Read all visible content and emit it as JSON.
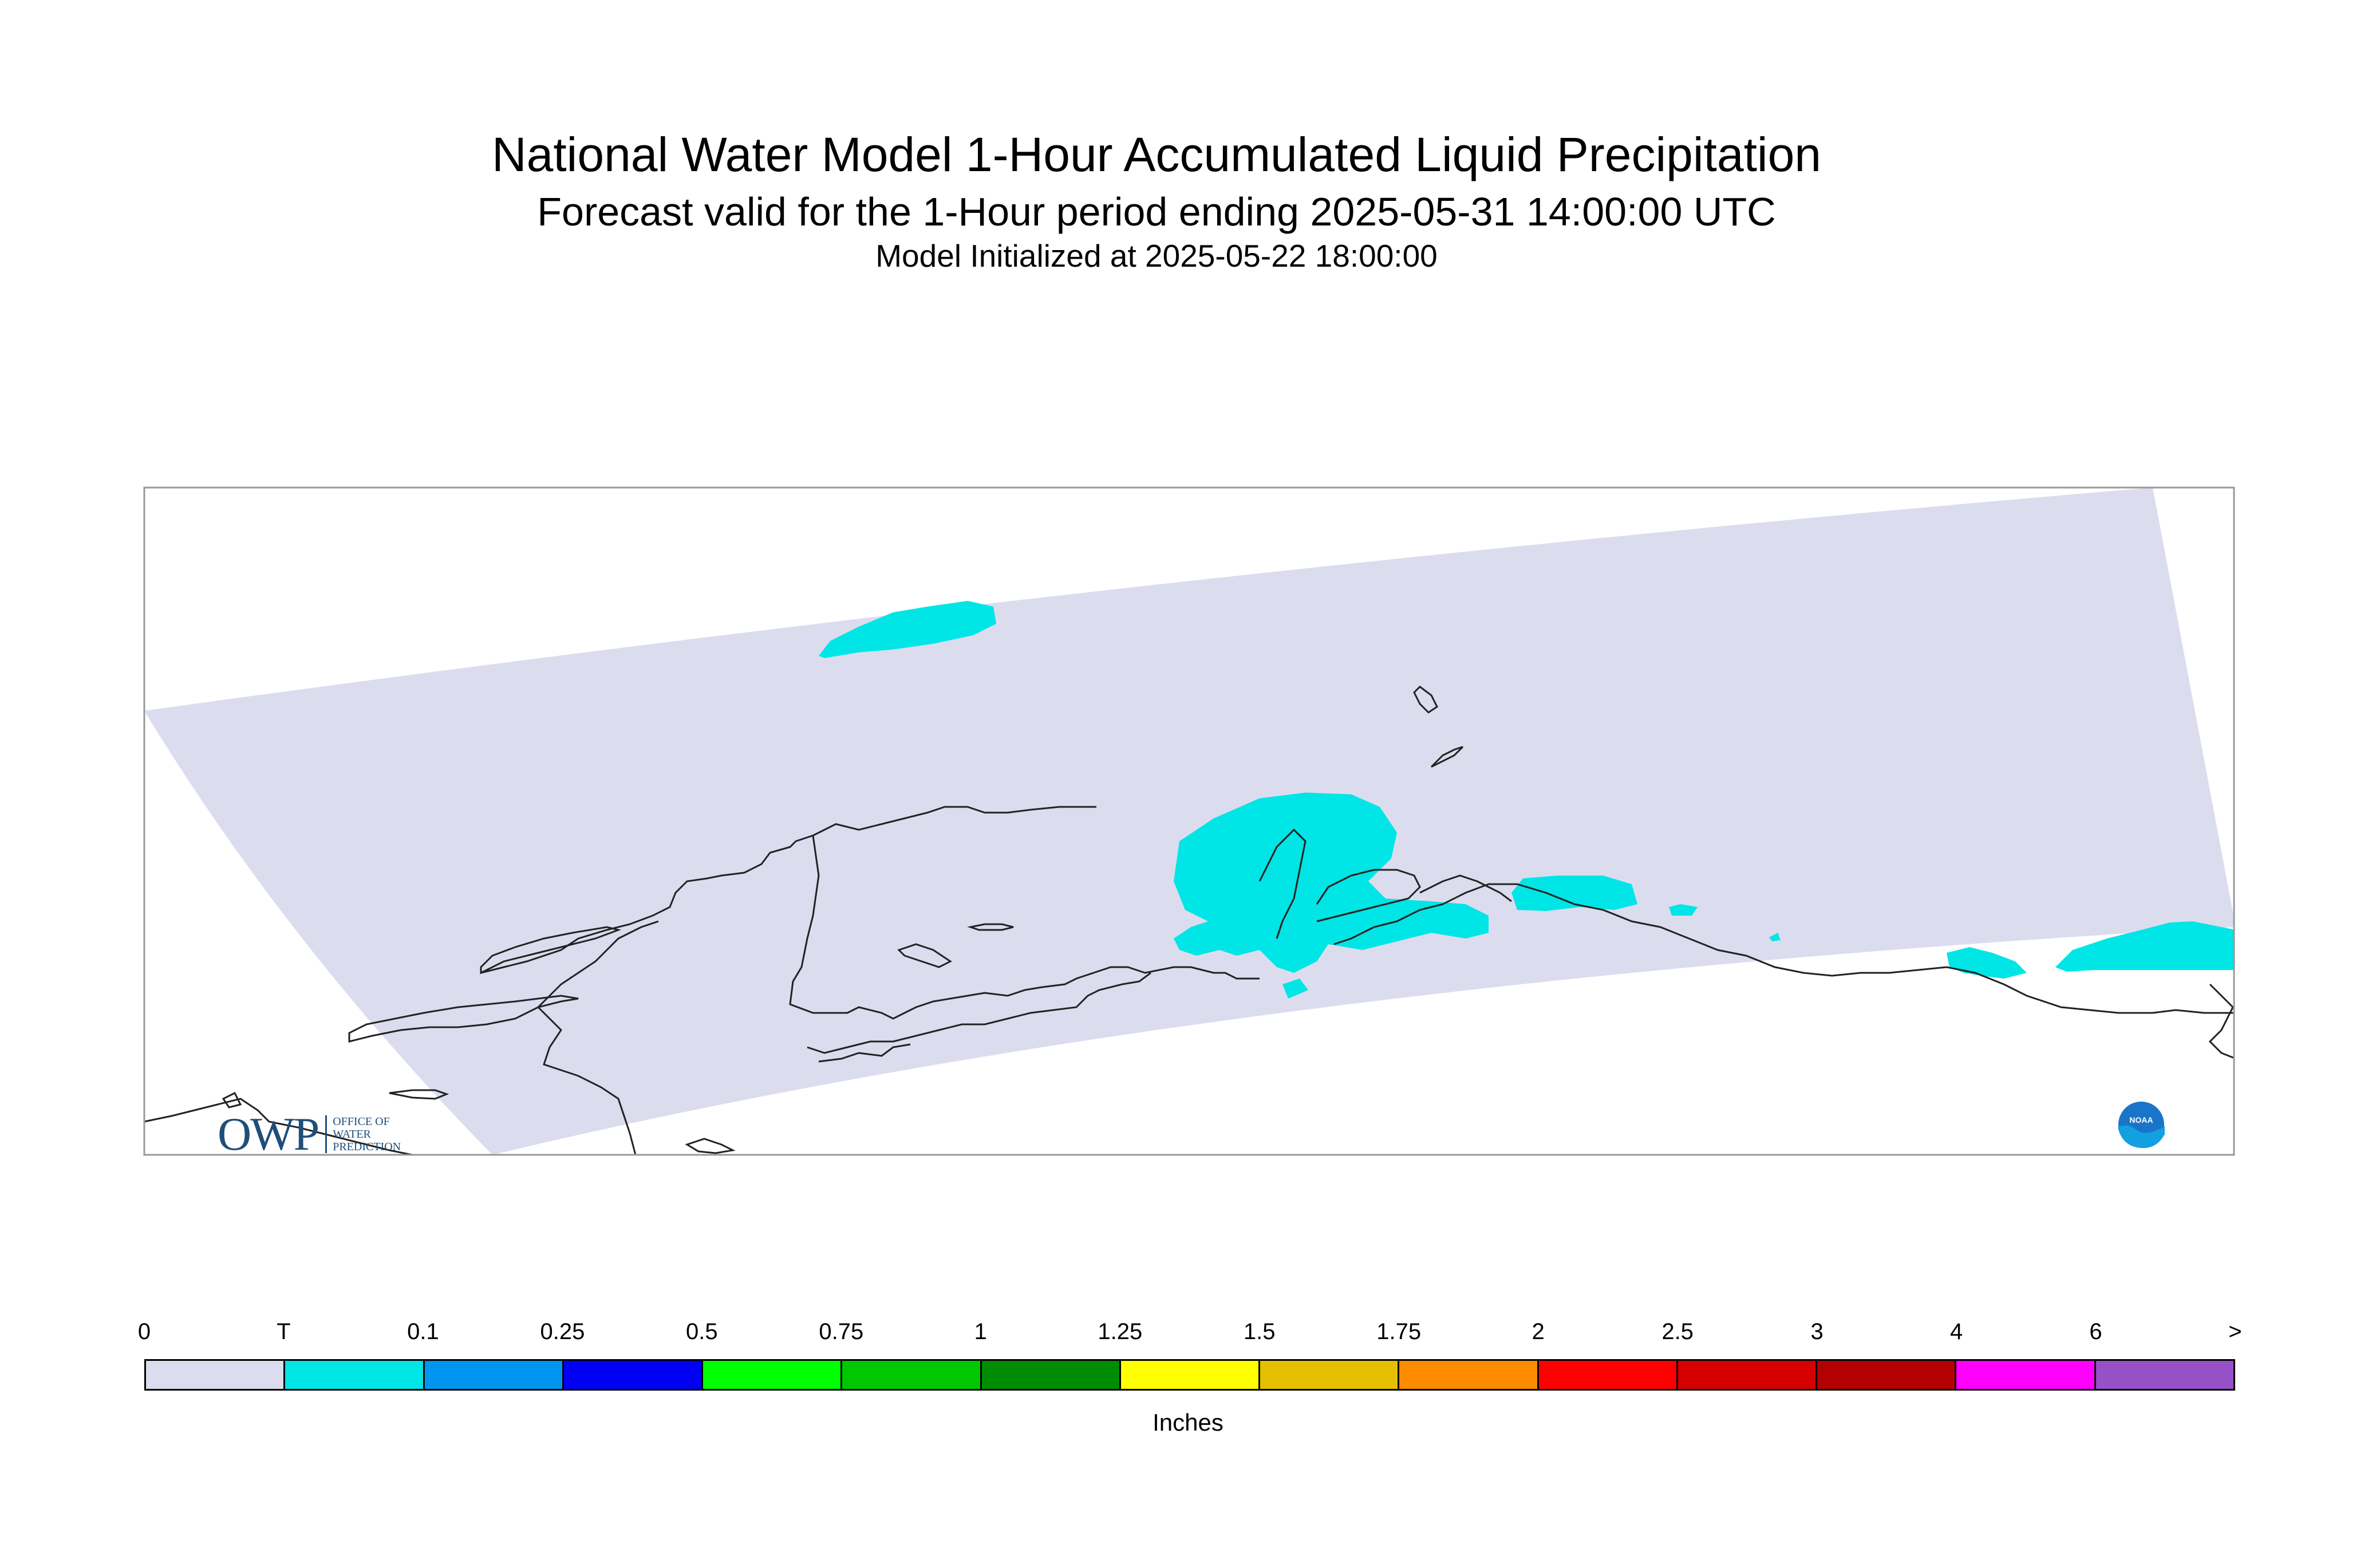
{
  "header": {
    "title": "National Water Model 1-Hour Accumulated Liquid Precipitation",
    "subtitle": "Forecast valid for the 1-Hour period ending 2025-05-31 14:00:00 UTC",
    "init": "Model Initialized at 2025-05-22 18:00:00"
  },
  "legend": {
    "units": "Inches",
    "ticks": [
      "0",
      "T",
      "0.1",
      "0.25",
      "0.5",
      "0.75",
      "1",
      "1.25",
      "1.5",
      "1.75",
      "2",
      "2.5",
      "3",
      "4",
      "6",
      ">"
    ],
    "colors": [
      "#dcdcef",
      "#00e5e5",
      "#0096f0",
      "#0000f5",
      "#00ff00",
      "#00c800",
      "#008c00",
      "#ffff00",
      "#e6c000",
      "#ff8c00",
      "#ff0000",
      "#d70000",
      "#b40000",
      "#ff00ff",
      "#9650c8"
    ]
  },
  "map": {
    "domain_fill": "#dcdcef",
    "precip_color": "#00e5e5",
    "coast_color": "#222222"
  },
  "logos": {
    "owp_mark": "OWP",
    "owp_line1": "OFFICE OF",
    "owp_line2": "WATER",
    "owp_line3": "PREDICTION",
    "noaa_text": "NOAA"
  }
}
